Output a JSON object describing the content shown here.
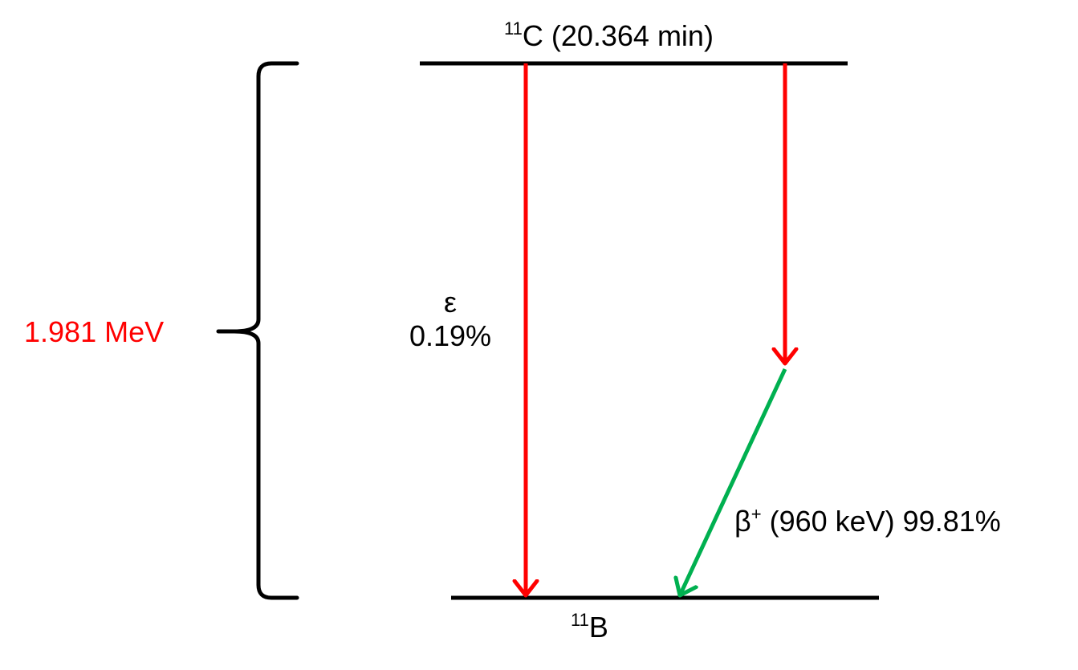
{
  "parent": {
    "mass_number": "11",
    "element": "C",
    "half_life": " (20.364 min)"
  },
  "daughter": {
    "mass_number": "11",
    "element": "B"
  },
  "q_value": {
    "label": "1.981 MeV"
  },
  "electron_capture": {
    "symbol": "ε",
    "branching": "0.19%"
  },
  "beta_plus": {
    "symbol": "β",
    "charge": "+",
    "energy": " (960 keV) 99.81%"
  },
  "colors": {
    "energy_text": "#ff0000",
    "capture_arrow": "#ff0000",
    "beta_arrow": "#00b050",
    "levels": "#000000"
  }
}
